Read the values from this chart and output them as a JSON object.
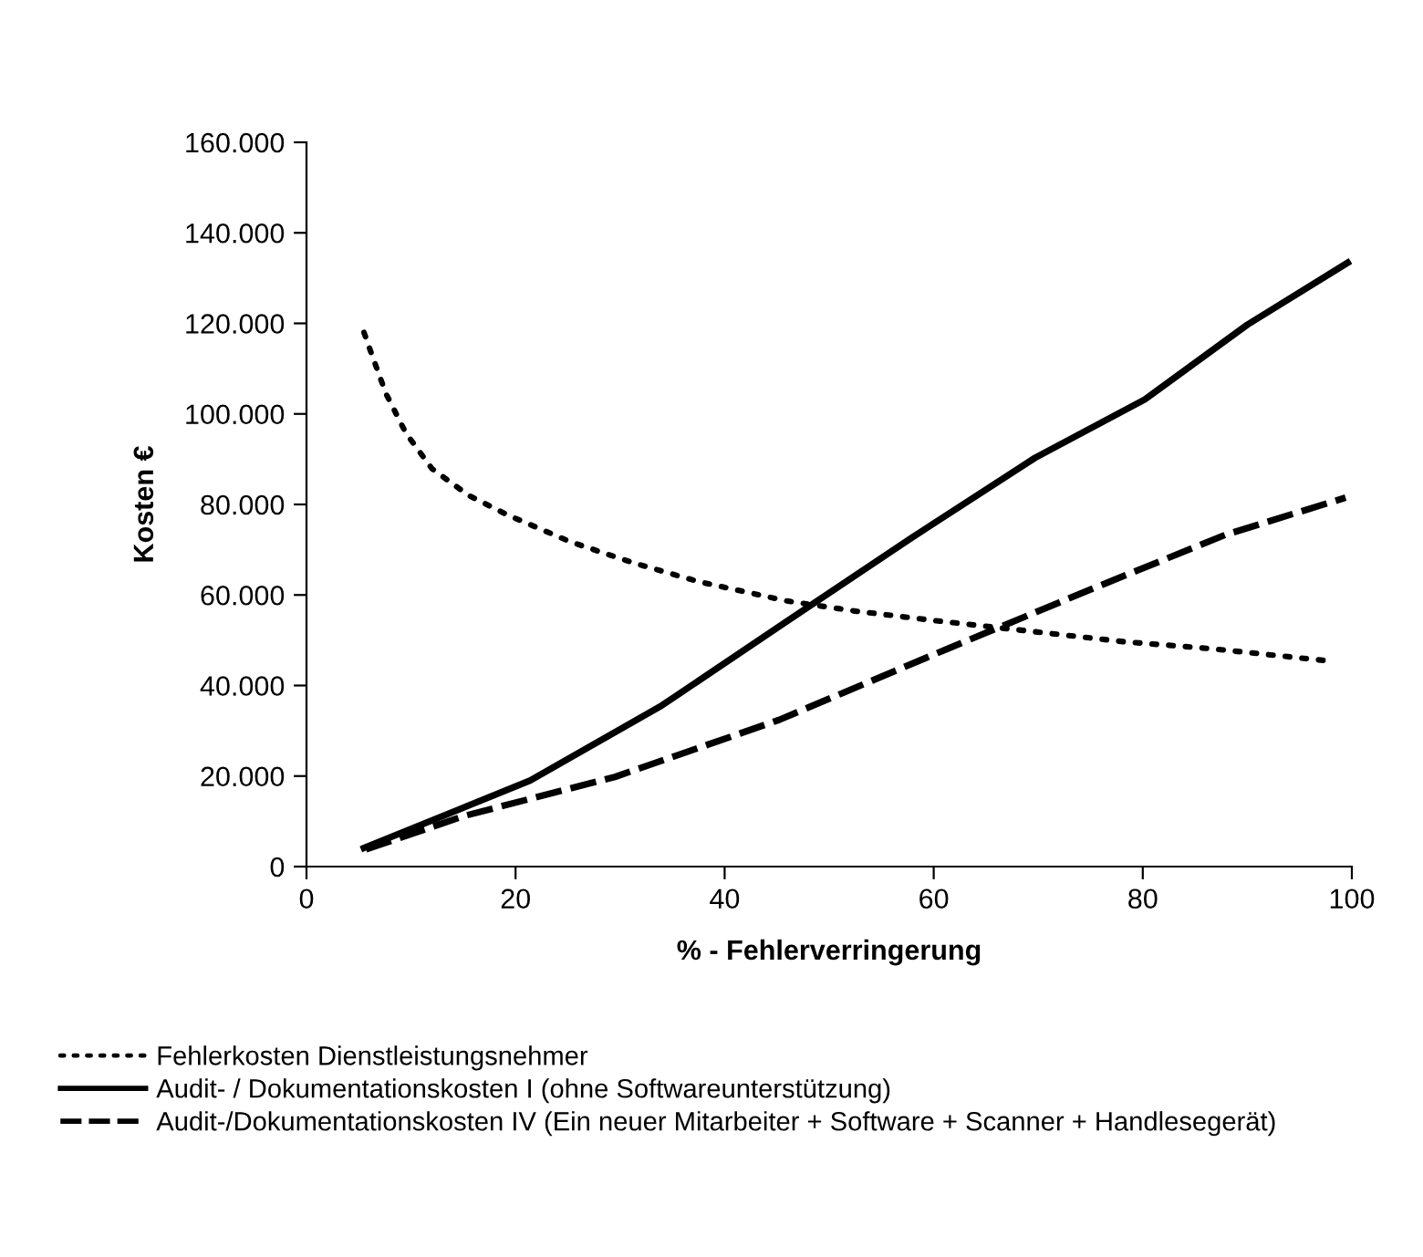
{
  "chart_data": {
    "type": "line",
    "xlabel": "% - Fehlerverringerung",
    "ylabel": "Kosten €",
    "xlim": [
      0,
      100
    ],
    "xticks": [
      0,
      20,
      40,
      60,
      80,
      100
    ],
    "ylim": [
      0,
      160000
    ],
    "yticks": [
      0,
      {
        "value": 20000,
        "label": "20.000"
      },
      {
        "value": 40000,
        "label": "40.000"
      },
      {
        "value": 60000,
        "label": "60.000"
      },
      {
        "value": 80000,
        "label": "80.000"
      },
      {
        "value": 100000,
        "label": "100.000"
      },
      {
        "value": 120000,
        "label": "120.000"
      },
      {
        "value": 140000,
        "label": "140.000"
      },
      {
        "value": 160000,
        "label": "160.000"
      }
    ],
    "grid": false,
    "legend": "bottom",
    "marker": "none",
    "series": [
      {
        "name": "Fehlerkosten Dienstleistungsnehmer",
        "color": "#000000",
        "line_style": "dotted",
        "x": [
          5.5,
          6.2,
          7.6,
          9.5,
          12.0,
          15.5,
          19.3,
          25.3,
          31.4,
          37.6,
          45.9,
          52.3,
          61.0,
          69.6,
          78.1,
          86.7,
          97.5
        ],
        "values": [
          118000,
          113400,
          104500,
          95800,
          87900,
          82000,
          77600,
          71700,
          67000,
          62900,
          58700,
          56500,
          54100,
          51900,
          49700,
          48100,
          45500
        ]
      },
      {
        "name": "Audit- / Dokumentationskosten I (ohne Softwareunterstützung)",
        "color": "#000000",
        "line_style": "solid",
        "x": [
          5.5,
          21.4,
          34.0,
          45.9,
          57.8,
          69.7,
          80.2,
          90.0,
          99.6
        ],
        "values": [
          4100,
          19000,
          35600,
          54100,
          72500,
          90300,
          103200,
          119700,
          133400
        ]
      },
      {
        "name": "Audit-/Dokumentationskosten IV (Ein neuer Mitarbeiter + Software + Scanner + Handlesegerät)",
        "color": "#000000",
        "line_style": "dashed",
        "x": [
          5.7,
          15.1,
          29.5,
          45.2,
          61.3,
          75.3,
          87.9,
          99.4
        ],
        "values": [
          3800,
          11200,
          19800,
          32400,
          48100,
          61500,
          73300,
          81500
        ]
      }
    ]
  }
}
